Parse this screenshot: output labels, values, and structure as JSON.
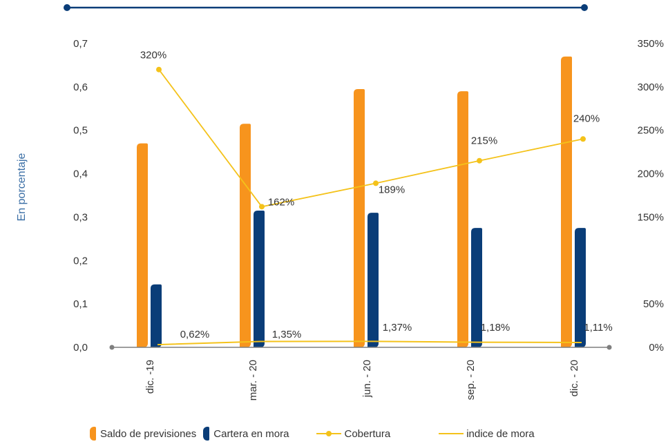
{
  "chart_data": {
    "type": "bar",
    "ylabel": "En porcentaje",
    "categories": [
      "dic. -19",
      "mar. - 20",
      "jun. - 20",
      "sep. - 20",
      "dic. - 20"
    ],
    "ylim": [
      0,
      0.7
    ],
    "y_ticks": [
      "0,0",
      "0,1",
      "0,2",
      "0,3",
      "0,4",
      "0,5",
      "0,6",
      "0,7"
    ],
    "y2lim": [
      0,
      350
    ],
    "y2_ticks": [
      "0%",
      "50%",
      "150%",
      "200%",
      "250%",
      "300%",
      "350%"
    ],
    "series": [
      {
        "name": "Saldo de previsiones",
        "kind": "bar",
        "color": "#f7941d",
        "values": [
          0.47,
          0.515,
          0.595,
          0.59,
          0.67
        ]
      },
      {
        "name": "Cartera en mora",
        "kind": "bar",
        "color": "#0a3d78",
        "values": [
          0.145,
          0.315,
          0.31,
          0.275,
          0.275
        ]
      },
      {
        "name": "Cobertura",
        "kind": "line-marker",
        "axis": "right",
        "color": "#f4c21a",
        "values": [
          320,
          162,
          189,
          215,
          240
        ],
        "labels": [
          "320%",
          "162%",
          "189%",
          "215%",
          "240%"
        ]
      },
      {
        "name": "indice de mora",
        "kind": "line",
        "color": "#f4c21a",
        "values": [
          0.0062,
          0.0135,
          0.0137,
          0.0118,
          0.0111
        ],
        "labels": [
          "0,62%",
          "1,35%",
          "1,37%",
          "1,18%",
          "1,11%"
        ]
      }
    ],
    "grid": false,
    "legend_position": "bottom"
  }
}
